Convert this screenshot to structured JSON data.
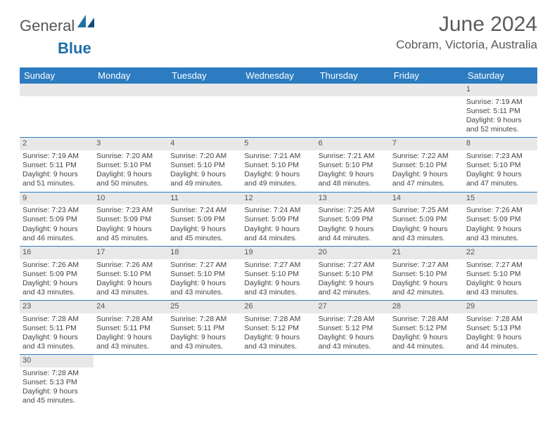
{
  "brand": {
    "part1": "General",
    "part2": "Blue"
  },
  "title": "June 2024",
  "location": "Cobram, Victoria, Australia",
  "colors": {
    "header_bg": "#2d7cc1",
    "header_text": "#ffffff",
    "daynum_bg": "#e8e8e8",
    "row_border": "#2d7cc1",
    "logo_accent": "#1d6fa5",
    "text": "#444444"
  },
  "weekdays": [
    "Sunday",
    "Monday",
    "Tuesday",
    "Wednesday",
    "Thursday",
    "Friday",
    "Saturday"
  ],
  "weeks": [
    [
      null,
      null,
      null,
      null,
      null,
      null,
      {
        "d": "1",
        "sr": "Sunrise: 7:19 AM",
        "ss": "Sunset: 5:11 PM",
        "dl": "Daylight: 9 hours and 52 minutes."
      }
    ],
    [
      {
        "d": "2",
        "sr": "Sunrise: 7:19 AM",
        "ss": "Sunset: 5:11 PM",
        "dl": "Daylight: 9 hours and 51 minutes."
      },
      {
        "d": "3",
        "sr": "Sunrise: 7:20 AM",
        "ss": "Sunset: 5:10 PM",
        "dl": "Daylight: 9 hours and 50 minutes."
      },
      {
        "d": "4",
        "sr": "Sunrise: 7:20 AM",
        "ss": "Sunset: 5:10 PM",
        "dl": "Daylight: 9 hours and 49 minutes."
      },
      {
        "d": "5",
        "sr": "Sunrise: 7:21 AM",
        "ss": "Sunset: 5:10 PM",
        "dl": "Daylight: 9 hours and 49 minutes."
      },
      {
        "d": "6",
        "sr": "Sunrise: 7:21 AM",
        "ss": "Sunset: 5:10 PM",
        "dl": "Daylight: 9 hours and 48 minutes."
      },
      {
        "d": "7",
        "sr": "Sunrise: 7:22 AM",
        "ss": "Sunset: 5:10 PM",
        "dl": "Daylight: 9 hours and 47 minutes."
      },
      {
        "d": "8",
        "sr": "Sunrise: 7:23 AM",
        "ss": "Sunset: 5:10 PM",
        "dl": "Daylight: 9 hours and 47 minutes."
      }
    ],
    [
      {
        "d": "9",
        "sr": "Sunrise: 7:23 AM",
        "ss": "Sunset: 5:09 PM",
        "dl": "Daylight: 9 hours and 46 minutes."
      },
      {
        "d": "10",
        "sr": "Sunrise: 7:23 AM",
        "ss": "Sunset: 5:09 PM",
        "dl": "Daylight: 9 hours and 45 minutes."
      },
      {
        "d": "11",
        "sr": "Sunrise: 7:24 AM",
        "ss": "Sunset: 5:09 PM",
        "dl": "Daylight: 9 hours and 45 minutes."
      },
      {
        "d": "12",
        "sr": "Sunrise: 7:24 AM",
        "ss": "Sunset: 5:09 PM",
        "dl": "Daylight: 9 hours and 44 minutes."
      },
      {
        "d": "13",
        "sr": "Sunrise: 7:25 AM",
        "ss": "Sunset: 5:09 PM",
        "dl": "Daylight: 9 hours and 44 minutes."
      },
      {
        "d": "14",
        "sr": "Sunrise: 7:25 AM",
        "ss": "Sunset: 5:09 PM",
        "dl": "Daylight: 9 hours and 43 minutes."
      },
      {
        "d": "15",
        "sr": "Sunrise: 7:26 AM",
        "ss": "Sunset: 5:09 PM",
        "dl": "Daylight: 9 hours and 43 minutes."
      }
    ],
    [
      {
        "d": "16",
        "sr": "Sunrise: 7:26 AM",
        "ss": "Sunset: 5:09 PM",
        "dl": "Daylight: 9 hours and 43 minutes."
      },
      {
        "d": "17",
        "sr": "Sunrise: 7:26 AM",
        "ss": "Sunset: 5:10 PM",
        "dl": "Daylight: 9 hours and 43 minutes."
      },
      {
        "d": "18",
        "sr": "Sunrise: 7:27 AM",
        "ss": "Sunset: 5:10 PM",
        "dl": "Daylight: 9 hours and 43 minutes."
      },
      {
        "d": "19",
        "sr": "Sunrise: 7:27 AM",
        "ss": "Sunset: 5:10 PM",
        "dl": "Daylight: 9 hours and 43 minutes."
      },
      {
        "d": "20",
        "sr": "Sunrise: 7:27 AM",
        "ss": "Sunset: 5:10 PM",
        "dl": "Daylight: 9 hours and 42 minutes."
      },
      {
        "d": "21",
        "sr": "Sunrise: 7:27 AM",
        "ss": "Sunset: 5:10 PM",
        "dl": "Daylight: 9 hours and 42 minutes."
      },
      {
        "d": "22",
        "sr": "Sunrise: 7:27 AM",
        "ss": "Sunset: 5:10 PM",
        "dl": "Daylight: 9 hours and 43 minutes."
      }
    ],
    [
      {
        "d": "23",
        "sr": "Sunrise: 7:28 AM",
        "ss": "Sunset: 5:11 PM",
        "dl": "Daylight: 9 hours and 43 minutes."
      },
      {
        "d": "24",
        "sr": "Sunrise: 7:28 AM",
        "ss": "Sunset: 5:11 PM",
        "dl": "Daylight: 9 hours and 43 minutes."
      },
      {
        "d": "25",
        "sr": "Sunrise: 7:28 AM",
        "ss": "Sunset: 5:11 PM",
        "dl": "Daylight: 9 hours and 43 minutes."
      },
      {
        "d": "26",
        "sr": "Sunrise: 7:28 AM",
        "ss": "Sunset: 5:12 PM",
        "dl": "Daylight: 9 hours and 43 minutes."
      },
      {
        "d": "27",
        "sr": "Sunrise: 7:28 AM",
        "ss": "Sunset: 5:12 PM",
        "dl": "Daylight: 9 hours and 43 minutes."
      },
      {
        "d": "28",
        "sr": "Sunrise: 7:28 AM",
        "ss": "Sunset: 5:12 PM",
        "dl": "Daylight: 9 hours and 44 minutes."
      },
      {
        "d": "29",
        "sr": "Sunrise: 7:28 AM",
        "ss": "Sunset: 5:13 PM",
        "dl": "Daylight: 9 hours and 44 minutes."
      }
    ],
    [
      {
        "d": "30",
        "sr": "Sunrise: 7:28 AM",
        "ss": "Sunset: 5:13 PM",
        "dl": "Daylight: 9 hours and 45 minutes."
      },
      null,
      null,
      null,
      null,
      null,
      null
    ]
  ]
}
